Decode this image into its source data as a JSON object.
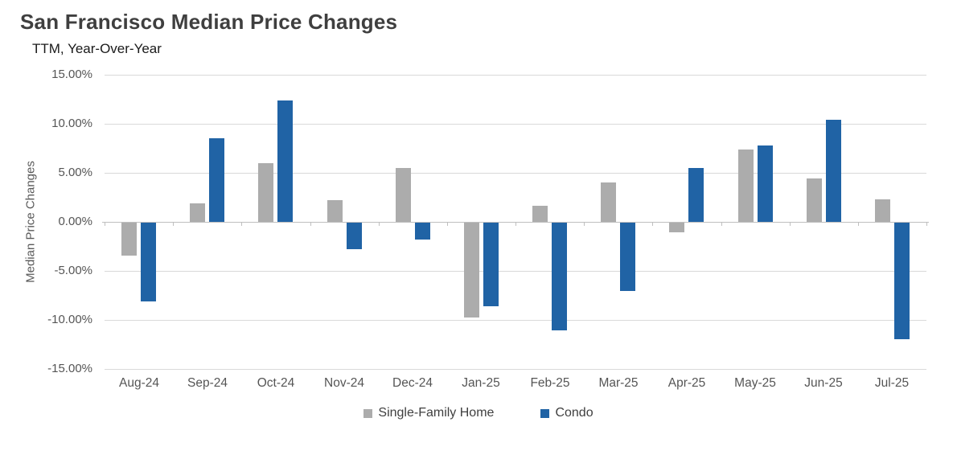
{
  "title": "San Francisco Median Price Changes",
  "subtitle": "TTM, Year-Over-Year",
  "chart_data": {
    "type": "bar",
    "title": "San Francisco Median Price Changes",
    "subtitle": "TTM, Year-Over-Year",
    "xlabel": "",
    "ylabel": "Median Price Changes",
    "ylim": [
      -15,
      15
    ],
    "ytick_step": 5,
    "ytick_suffix": "%",
    "grid": true,
    "legend_position": "bottom",
    "categories": [
      "Aug-24",
      "Sep-24",
      "Oct-24",
      "Nov-24",
      "Dec-24",
      "Jan-25",
      "Feb-25",
      "Mar-25",
      "Apr-25",
      "May-25",
      "Jun-25",
      "Jul-25"
    ],
    "series": [
      {
        "name": "Single-Family Home",
        "color": "#ACACAC",
        "values": [
          -3.4,
          1.9,
          6.0,
          2.2,
          5.5,
          -9.7,
          1.6,
          4.0,
          -1.0,
          7.4,
          4.4,
          2.3
        ]
      },
      {
        "name": "Condo",
        "color": "#2063A5",
        "values": [
          -8.0,
          8.5,
          12.4,
          -2.7,
          -1.7,
          -8.5,
          -11.0,
          -7.0,
          5.5,
          7.8,
          10.4,
          -11.9
        ]
      }
    ]
  },
  "colors": {
    "gridline": "#d9d9d9",
    "zero_axis": "#bfbfbf",
    "title_text": "#3f3f3f",
    "subtitle_text": "#1a1a1a",
    "tick_text": "#555555",
    "axis_title_text": "#595959",
    "background": "#ffffff"
  }
}
